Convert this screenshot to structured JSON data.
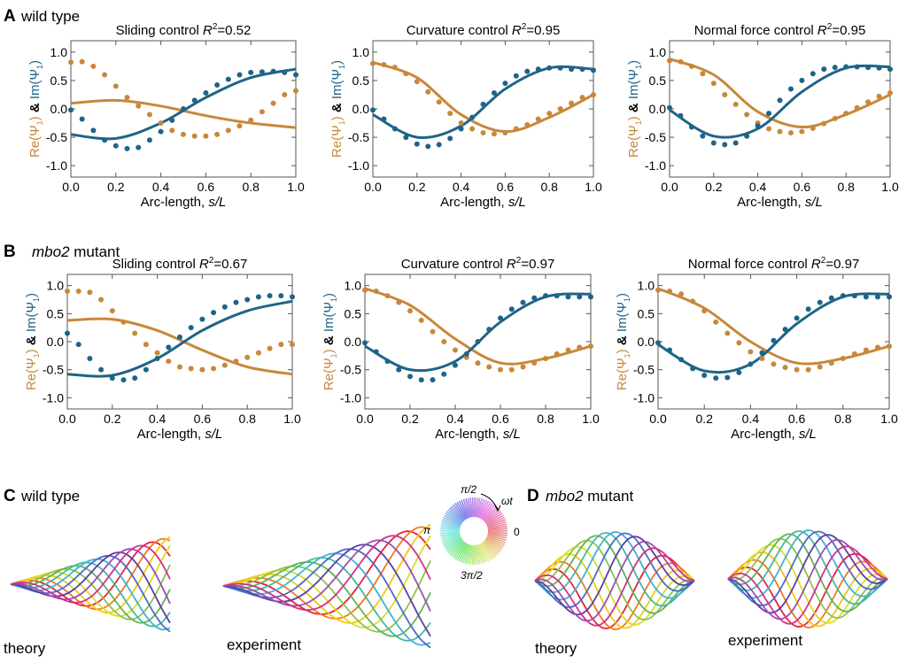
{
  "panels": {
    "A": {
      "letter": "A",
      "prefix": "",
      "italic": "",
      "suffix": "wild type"
    },
    "B": {
      "letter": "B",
      "prefix": "",
      "italic": "mbo2",
      "suffix": " mutant"
    },
    "C": {
      "letter": "C",
      "prefix": "",
      "italic": "",
      "suffix": "wild type"
    },
    "D": {
      "letter": "D",
      "prefix": "",
      "italic": "mbo2",
      "suffix": " mutant"
    }
  },
  "axis_text": {
    "xlabel": "Arc-length, ",
    "xlabel_italic": "s/L",
    "ylabel_re": "Re(Ψ",
    "ylabel_amp": " & ",
    "ylabel_im": "Im(Ψ",
    "ylabel_sub": "1",
    "ylabel_close": ")"
  },
  "colors": {
    "re": "#C8873A",
    "im": "#1E6488"
  },
  "shape_labels": {
    "C_left": "theory",
    "C_right": "experiment",
    "D_left": "theory",
    "D_right": "experiment"
  },
  "phase_wheel": {
    "top": "π/2",
    "left": "π",
    "right": "0",
    "bottom": "3π/2",
    "arrow": "ωt"
  },
  "chart_data": [
    {
      "id": "A1",
      "type": "scatter+line",
      "title": "Sliding control",
      "r2_label": "R",
      "r2_value": "=0.52",
      "x_ticks": [
        "0.0",
        "0.2",
        "0.4",
        "0.6",
        "0.8",
        "1.0"
      ],
      "y_ticks": [
        "1.0",
        "0.5",
        "0.0",
        "-0.5",
        "-1.0"
      ],
      "xlim": [
        0,
        1
      ],
      "ylim": [
        -1.2,
        1.2
      ],
      "x": [
        0,
        0.05,
        0.1,
        0.15,
        0.2,
        0.25,
        0.3,
        0.35,
        0.4,
        0.45,
        0.5,
        0.55,
        0.6,
        0.65,
        0.7,
        0.75,
        0.8,
        0.85,
        0.9,
        0.95,
        1.0
      ],
      "re_points": [
        0.82,
        0.83,
        0.75,
        0.6,
        0.4,
        0.2,
        0.05,
        -0.1,
        -0.25,
        -0.38,
        -0.45,
        -0.48,
        -0.48,
        -0.45,
        -0.38,
        -0.3,
        -0.2,
        -0.05,
        0.1,
        0.25,
        0.32
      ],
      "im_points": [
        -0.02,
        -0.18,
        -0.38,
        -0.55,
        -0.65,
        -0.7,
        -0.68,
        -0.55,
        -0.4,
        -0.2,
        0,
        0.15,
        0.28,
        0.42,
        0.52,
        0.6,
        0.64,
        0.65,
        0.66,
        0.64,
        0.6
      ],
      "re_fit_x": [
        0,
        0.2,
        0.4,
        0.6,
        0.8,
        1.0
      ],
      "re_fit": [
        0.1,
        0.15,
        0.05,
        -0.12,
        -0.25,
        -0.33
      ],
      "im_fit_x": [
        0,
        0.2,
        0.4,
        0.6,
        0.8,
        1.0
      ],
      "im_fit": [
        -0.45,
        -0.52,
        -0.25,
        0.2,
        0.55,
        0.7
      ]
    },
    {
      "id": "A2",
      "type": "scatter+line",
      "title": "Curvature control",
      "r2_label": "R",
      "r2_value": "=0.95",
      "x_ticks": [
        "0.0",
        "0.2",
        "0.4",
        "0.6",
        "0.8",
        "1.0"
      ],
      "y_ticks": [
        "1.0",
        "0.5",
        "0.0",
        "-0.5",
        "-1.0"
      ],
      "xlim": [
        0,
        1
      ],
      "ylim": [
        -1.2,
        1.2
      ],
      "x": [
        0,
        0.05,
        0.1,
        0.15,
        0.2,
        0.25,
        0.3,
        0.35,
        0.4,
        0.45,
        0.5,
        0.55,
        0.6,
        0.65,
        0.7,
        0.75,
        0.8,
        0.85,
        0.9,
        0.95,
        1.0
      ],
      "re_points": [
        0.8,
        0.78,
        0.73,
        0.62,
        0.48,
        0.3,
        0.12,
        -0.08,
        -0.25,
        -0.35,
        -0.42,
        -0.44,
        -0.42,
        -0.35,
        -0.28,
        -0.18,
        -0.08,
        0,
        0.1,
        0.2,
        0.25
      ],
      "im_points": [
        -0.02,
        -0.18,
        -0.35,
        -0.5,
        -0.62,
        -0.66,
        -0.63,
        -0.52,
        -0.35,
        -0.15,
        0.08,
        0.28,
        0.45,
        0.58,
        0.66,
        0.7,
        0.72,
        0.72,
        0.7,
        0.7,
        0.68
      ],
      "re_fit_x": [
        0,
        0.2,
        0.4,
        0.6,
        0.8,
        1.0
      ],
      "re_fit": [
        0.82,
        0.55,
        -0.1,
        -0.4,
        -0.15,
        0.25
      ],
      "im_fit_x": [
        0,
        0.2,
        0.4,
        0.6,
        0.8,
        1.0
      ],
      "im_fit": [
        -0.1,
        -0.5,
        -0.3,
        0.35,
        0.72,
        0.7
      ]
    },
    {
      "id": "A3",
      "type": "scatter+line",
      "title": "Normal force control",
      "r2_label": "R",
      "r2_value": "=0.95",
      "x_ticks": [
        "0.0",
        "0.2",
        "0.4",
        "0.6",
        "0.8",
        "1.0"
      ],
      "y_ticks": [
        "1.0",
        "0.5",
        "0.0",
        "-0.5",
        "-1.0"
      ],
      "xlim": [
        0,
        1
      ],
      "ylim": [
        -1.2,
        1.2
      ],
      "x": [
        0,
        0.05,
        0.1,
        0.15,
        0.2,
        0.25,
        0.3,
        0.35,
        0.4,
        0.45,
        0.5,
        0.55,
        0.6,
        0.65,
        0.7,
        0.75,
        0.8,
        0.85,
        0.9,
        0.95,
        1.0
      ],
      "re_points": [
        0.85,
        0.83,
        0.75,
        0.62,
        0.45,
        0.25,
        0.08,
        -0.1,
        -0.25,
        -0.35,
        -0.4,
        -0.42,
        -0.4,
        -0.34,
        -0.26,
        -0.17,
        -0.08,
        0.02,
        0.12,
        0.22,
        0.28
      ],
      "im_points": [
        0.02,
        -0.12,
        -0.32,
        -0.48,
        -0.6,
        -0.63,
        -0.6,
        -0.48,
        -0.3,
        -0.08,
        0.15,
        0.35,
        0.5,
        0.62,
        0.7,
        0.73,
        0.74,
        0.74,
        0.73,
        0.72,
        0.7
      ],
      "re_fit_x": [
        0,
        0.2,
        0.4,
        0.6,
        0.8,
        1.0
      ],
      "re_fit": [
        0.88,
        0.6,
        -0.05,
        -0.32,
        -0.1,
        0.25
      ],
      "im_fit_x": [
        0,
        0.2,
        0.4,
        0.6,
        0.8,
        1.0
      ],
      "im_fit": [
        -0.02,
        -0.48,
        -0.35,
        0.3,
        0.72,
        0.74
      ]
    },
    {
      "id": "B1",
      "type": "scatter+line",
      "title": "Sliding control",
      "r2_label": "R",
      "r2_value": "=0.67",
      "x_ticks": [
        "0.0",
        "0.2",
        "0.4",
        "0.6",
        "0.8",
        "1.0"
      ],
      "y_ticks": [
        "1.0",
        "0.5",
        "0.0",
        "-0.5",
        "-1.0"
      ],
      "xlim": [
        0,
        1
      ],
      "ylim": [
        -1.2,
        1.2
      ],
      "x": [
        0,
        0.05,
        0.1,
        0.15,
        0.2,
        0.25,
        0.3,
        0.35,
        0.4,
        0.45,
        0.5,
        0.55,
        0.6,
        0.65,
        0.7,
        0.75,
        0.8,
        0.85,
        0.9,
        0.95,
        1.0
      ],
      "re_points": [
        0.9,
        0.9,
        0.88,
        0.75,
        0.55,
        0.35,
        0.15,
        -0.05,
        -0.2,
        -0.35,
        -0.45,
        -0.48,
        -0.5,
        -0.48,
        -0.42,
        -0.35,
        -0.28,
        -0.2,
        -0.12,
        -0.05,
        -0.05
      ],
      "im_points": [
        0.15,
        -0.05,
        -0.3,
        -0.5,
        -0.65,
        -0.68,
        -0.65,
        -0.5,
        -0.3,
        -0.1,
        0.08,
        0.25,
        0.4,
        0.52,
        0.62,
        0.7,
        0.75,
        0.8,
        0.82,
        0.82,
        0.8
      ],
      "re_fit_x": [
        0,
        0.2,
        0.4,
        0.6,
        0.8,
        1.0
      ],
      "re_fit": [
        0.38,
        0.4,
        0.2,
        -0.15,
        -0.45,
        -0.58
      ],
      "im_fit_x": [
        0,
        0.2,
        0.4,
        0.6,
        0.8,
        1.0
      ],
      "im_fit": [
        -0.58,
        -0.6,
        -0.3,
        0.2,
        0.55,
        0.72
      ]
    },
    {
      "id": "B2",
      "type": "scatter+line",
      "title": "Curvature control",
      "r2_label": "R",
      "r2_value": "=0.97",
      "x_ticks": [
        "0.0",
        "0.2",
        "0.4",
        "0.6",
        "0.8",
        "1.0"
      ],
      "y_ticks": [
        "1.0",
        "0.5",
        "0.0",
        "-0.5",
        "-1.0"
      ],
      "xlim": [
        0,
        1
      ],
      "ylim": [
        -1.2,
        1.2
      ],
      "x": [
        0,
        0.05,
        0.1,
        0.15,
        0.2,
        0.25,
        0.3,
        0.35,
        0.4,
        0.45,
        0.5,
        0.55,
        0.6,
        0.65,
        0.7,
        0.75,
        0.8,
        0.85,
        0.9,
        0.95,
        1.0
      ],
      "re_points": [
        0.92,
        0.9,
        0.82,
        0.7,
        0.55,
        0.38,
        0.18,
        0,
        -0.15,
        -0.28,
        -0.38,
        -0.45,
        -0.5,
        -0.5,
        -0.45,
        -0.38,
        -0.3,
        -0.22,
        -0.15,
        -0.1,
        -0.08
      ],
      "im_points": [
        -0.02,
        -0.18,
        -0.35,
        -0.5,
        -0.62,
        -0.68,
        -0.68,
        -0.58,
        -0.42,
        -0.22,
        0,
        0.22,
        0.42,
        0.58,
        0.7,
        0.78,
        0.82,
        0.82,
        0.8,
        0.8,
        0.8
      ],
      "re_fit_x": [
        0,
        0.2,
        0.4,
        0.6,
        0.8,
        1.0
      ],
      "re_fit": [
        0.95,
        0.65,
        0.05,
        -0.38,
        -0.3,
        -0.08
      ],
      "im_fit_x": [
        0,
        0.2,
        0.4,
        0.6,
        0.8,
        1.0
      ],
      "im_fit": [
        -0.08,
        -0.5,
        -0.35,
        0.35,
        0.8,
        0.85
      ]
    },
    {
      "id": "B3",
      "type": "scatter+line",
      "title": "Normal force control",
      "r2_label": "R",
      "r2_value": "=0.97",
      "x_ticks": [
        "0.0",
        "0.2",
        "0.4",
        "0.6",
        "0.8",
        "1.0"
      ],
      "y_ticks": [
        "1.0",
        "0.5",
        "0.0",
        "-0.5",
        "-1.0"
      ],
      "xlim": [
        0,
        1
      ],
      "ylim": [
        -1.2,
        1.2
      ],
      "x": [
        0,
        0.05,
        0.1,
        0.15,
        0.2,
        0.25,
        0.3,
        0.35,
        0.4,
        0.45,
        0.5,
        0.55,
        0.6,
        0.65,
        0.7,
        0.75,
        0.8,
        0.85,
        0.9,
        0.95,
        1.0
      ],
      "re_points": [
        0.92,
        0.9,
        0.85,
        0.72,
        0.55,
        0.35,
        0.15,
        -0.02,
        -0.18,
        -0.3,
        -0.4,
        -0.46,
        -0.5,
        -0.5,
        -0.45,
        -0.38,
        -0.3,
        -0.22,
        -0.15,
        -0.1,
        -0.08
      ],
      "im_points": [
        -0.02,
        -0.15,
        -0.32,
        -0.48,
        -0.6,
        -0.65,
        -0.64,
        -0.55,
        -0.4,
        -0.2,
        0.02,
        0.22,
        0.42,
        0.58,
        0.7,
        0.78,
        0.82,
        0.82,
        0.8,
        0.8,
        0.8
      ],
      "re_fit_x": [
        0,
        0.2,
        0.4,
        0.6,
        0.8,
        1.0
      ],
      "re_fit": [
        0.95,
        0.6,
        0,
        -0.38,
        -0.3,
        -0.08
      ],
      "im_fit_x": [
        0,
        0.2,
        0.4,
        0.6,
        0.8,
        1.0
      ],
      "im_fit": [
        -0.05,
        -0.52,
        -0.4,
        0.32,
        0.8,
        0.85
      ]
    }
  ]
}
